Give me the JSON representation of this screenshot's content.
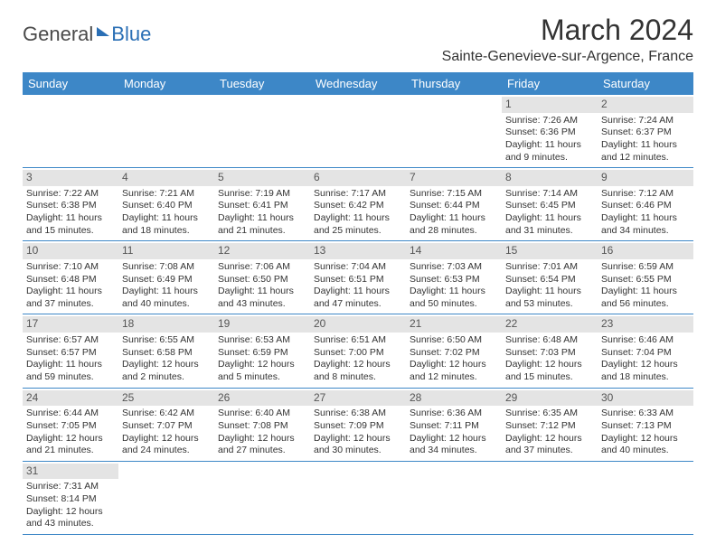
{
  "logo": {
    "text1": "General",
    "text2": "Blue"
  },
  "title": "March 2024",
  "location": "Sainte-Genevieve-sur-Argence, France",
  "colors": {
    "header_bg": "#3d87c7",
    "header_text": "#ffffff",
    "daynum_bg": "#e4e4e4",
    "border": "#3d87c7",
    "logo_gray": "#4a4a4a",
    "logo_blue": "#2a6fb5"
  },
  "weekdays": [
    "Sunday",
    "Monday",
    "Tuesday",
    "Wednesday",
    "Thursday",
    "Friday",
    "Saturday"
  ],
  "weeks": [
    [
      null,
      null,
      null,
      null,
      null,
      {
        "n": "1",
        "sr": "Sunrise: 7:26 AM",
        "ss": "Sunset: 6:36 PM",
        "d1": "Daylight: 11 hours",
        "d2": "and 9 minutes."
      },
      {
        "n": "2",
        "sr": "Sunrise: 7:24 AM",
        "ss": "Sunset: 6:37 PM",
        "d1": "Daylight: 11 hours",
        "d2": "and 12 minutes."
      }
    ],
    [
      {
        "n": "3",
        "sr": "Sunrise: 7:22 AM",
        "ss": "Sunset: 6:38 PM",
        "d1": "Daylight: 11 hours",
        "d2": "and 15 minutes."
      },
      {
        "n": "4",
        "sr": "Sunrise: 7:21 AM",
        "ss": "Sunset: 6:40 PM",
        "d1": "Daylight: 11 hours",
        "d2": "and 18 minutes."
      },
      {
        "n": "5",
        "sr": "Sunrise: 7:19 AM",
        "ss": "Sunset: 6:41 PM",
        "d1": "Daylight: 11 hours",
        "d2": "and 21 minutes."
      },
      {
        "n": "6",
        "sr": "Sunrise: 7:17 AM",
        "ss": "Sunset: 6:42 PM",
        "d1": "Daylight: 11 hours",
        "d2": "and 25 minutes."
      },
      {
        "n": "7",
        "sr": "Sunrise: 7:15 AM",
        "ss": "Sunset: 6:44 PM",
        "d1": "Daylight: 11 hours",
        "d2": "and 28 minutes."
      },
      {
        "n": "8",
        "sr": "Sunrise: 7:14 AM",
        "ss": "Sunset: 6:45 PM",
        "d1": "Daylight: 11 hours",
        "d2": "and 31 minutes."
      },
      {
        "n": "9",
        "sr": "Sunrise: 7:12 AM",
        "ss": "Sunset: 6:46 PM",
        "d1": "Daylight: 11 hours",
        "d2": "and 34 minutes."
      }
    ],
    [
      {
        "n": "10",
        "sr": "Sunrise: 7:10 AM",
        "ss": "Sunset: 6:48 PM",
        "d1": "Daylight: 11 hours",
        "d2": "and 37 minutes."
      },
      {
        "n": "11",
        "sr": "Sunrise: 7:08 AM",
        "ss": "Sunset: 6:49 PM",
        "d1": "Daylight: 11 hours",
        "d2": "and 40 minutes."
      },
      {
        "n": "12",
        "sr": "Sunrise: 7:06 AM",
        "ss": "Sunset: 6:50 PM",
        "d1": "Daylight: 11 hours",
        "d2": "and 43 minutes."
      },
      {
        "n": "13",
        "sr": "Sunrise: 7:04 AM",
        "ss": "Sunset: 6:51 PM",
        "d1": "Daylight: 11 hours",
        "d2": "and 47 minutes."
      },
      {
        "n": "14",
        "sr": "Sunrise: 7:03 AM",
        "ss": "Sunset: 6:53 PM",
        "d1": "Daylight: 11 hours",
        "d2": "and 50 minutes."
      },
      {
        "n": "15",
        "sr": "Sunrise: 7:01 AM",
        "ss": "Sunset: 6:54 PM",
        "d1": "Daylight: 11 hours",
        "d2": "and 53 minutes."
      },
      {
        "n": "16",
        "sr": "Sunrise: 6:59 AM",
        "ss": "Sunset: 6:55 PM",
        "d1": "Daylight: 11 hours",
        "d2": "and 56 minutes."
      }
    ],
    [
      {
        "n": "17",
        "sr": "Sunrise: 6:57 AM",
        "ss": "Sunset: 6:57 PM",
        "d1": "Daylight: 11 hours",
        "d2": "and 59 minutes."
      },
      {
        "n": "18",
        "sr": "Sunrise: 6:55 AM",
        "ss": "Sunset: 6:58 PM",
        "d1": "Daylight: 12 hours",
        "d2": "and 2 minutes."
      },
      {
        "n": "19",
        "sr": "Sunrise: 6:53 AM",
        "ss": "Sunset: 6:59 PM",
        "d1": "Daylight: 12 hours",
        "d2": "and 5 minutes."
      },
      {
        "n": "20",
        "sr": "Sunrise: 6:51 AM",
        "ss": "Sunset: 7:00 PM",
        "d1": "Daylight: 12 hours",
        "d2": "and 8 minutes."
      },
      {
        "n": "21",
        "sr": "Sunrise: 6:50 AM",
        "ss": "Sunset: 7:02 PM",
        "d1": "Daylight: 12 hours",
        "d2": "and 12 minutes."
      },
      {
        "n": "22",
        "sr": "Sunrise: 6:48 AM",
        "ss": "Sunset: 7:03 PM",
        "d1": "Daylight: 12 hours",
        "d2": "and 15 minutes."
      },
      {
        "n": "23",
        "sr": "Sunrise: 6:46 AM",
        "ss": "Sunset: 7:04 PM",
        "d1": "Daylight: 12 hours",
        "d2": "and 18 minutes."
      }
    ],
    [
      {
        "n": "24",
        "sr": "Sunrise: 6:44 AM",
        "ss": "Sunset: 7:05 PM",
        "d1": "Daylight: 12 hours",
        "d2": "and 21 minutes."
      },
      {
        "n": "25",
        "sr": "Sunrise: 6:42 AM",
        "ss": "Sunset: 7:07 PM",
        "d1": "Daylight: 12 hours",
        "d2": "and 24 minutes."
      },
      {
        "n": "26",
        "sr": "Sunrise: 6:40 AM",
        "ss": "Sunset: 7:08 PM",
        "d1": "Daylight: 12 hours",
        "d2": "and 27 minutes."
      },
      {
        "n": "27",
        "sr": "Sunrise: 6:38 AM",
        "ss": "Sunset: 7:09 PM",
        "d1": "Daylight: 12 hours",
        "d2": "and 30 minutes."
      },
      {
        "n": "28",
        "sr": "Sunrise: 6:36 AM",
        "ss": "Sunset: 7:11 PM",
        "d1": "Daylight: 12 hours",
        "d2": "and 34 minutes."
      },
      {
        "n": "29",
        "sr": "Sunrise: 6:35 AM",
        "ss": "Sunset: 7:12 PM",
        "d1": "Daylight: 12 hours",
        "d2": "and 37 minutes."
      },
      {
        "n": "30",
        "sr": "Sunrise: 6:33 AM",
        "ss": "Sunset: 7:13 PM",
        "d1": "Daylight: 12 hours",
        "d2": "and 40 minutes."
      }
    ],
    [
      {
        "n": "31",
        "sr": "Sunrise: 7:31 AM",
        "ss": "Sunset: 8:14 PM",
        "d1": "Daylight: 12 hours",
        "d2": "and 43 minutes."
      },
      null,
      null,
      null,
      null,
      null,
      null
    ]
  ]
}
